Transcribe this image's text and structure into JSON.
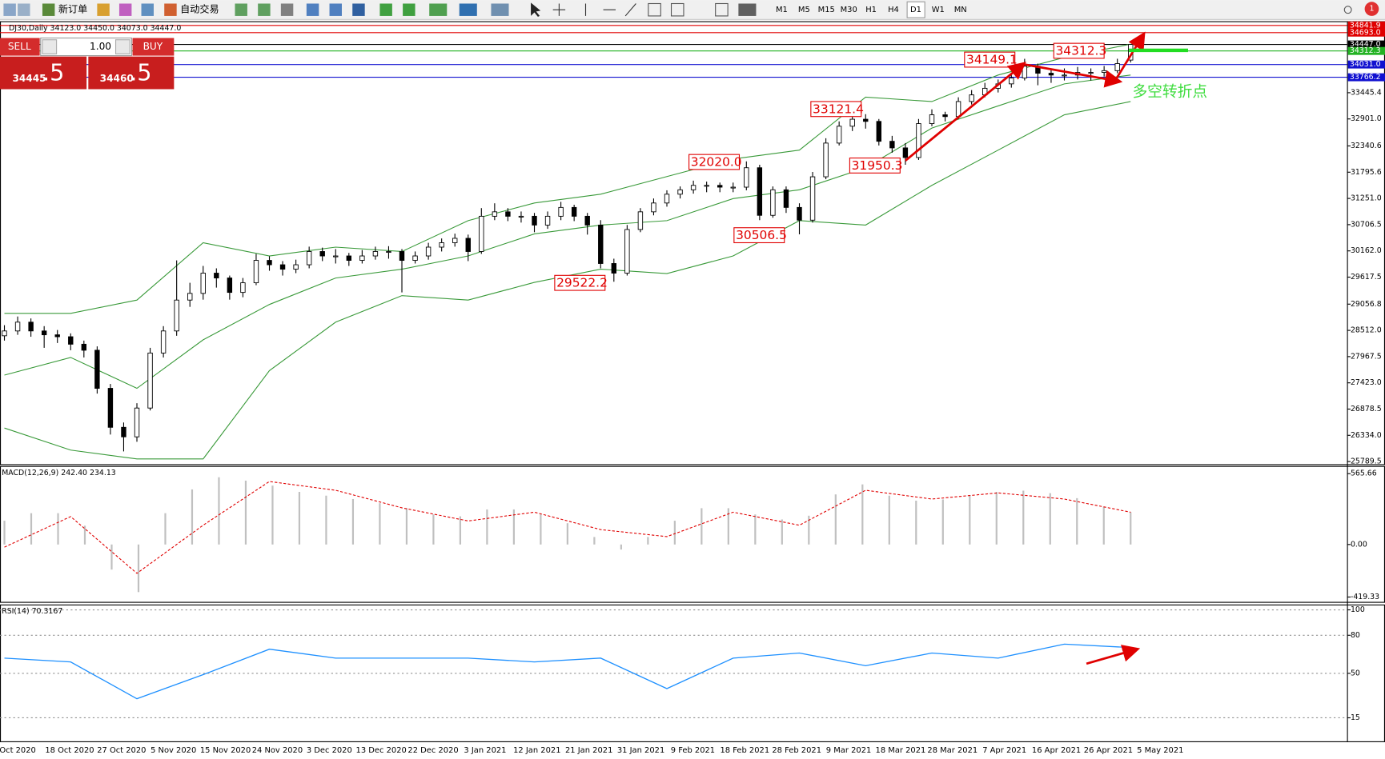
{
  "ui": {
    "toolbar": {
      "new_order": "新订单",
      "auto_trading": "自动交易",
      "timeframes": [
        "M1",
        "M5",
        "M15",
        "M30",
        "H1",
        "H4",
        "D1",
        "W1",
        "MN"
      ],
      "notification": "1"
    },
    "trade": {
      "sell": "SELL",
      "buy": "BUY",
      "lots": "1.00",
      "sell_price": [
        "34445",
        ".5"
      ],
      "buy_price": [
        "34460",
        ".5"
      ]
    },
    "note": "多空转折点"
  },
  "chart_data": [
    {
      "type": "candlestick",
      "title": "DJ30,Daily  34123.0 34450.0 34073.0 34447.0",
      "time_labels": [
        "Oct 2020",
        "18 Oct 2020",
        "27 Oct 2020",
        "5 Nov 2020",
        "15 Nov 2020",
        "24 Nov 2020",
        "3 Dec 2020",
        "13 Dec 2020",
        "22 Dec 2020",
        "3 Jan 2021",
        "12 Jan 2021",
        "21 Jan 2021",
        "31 Jan 2021",
        "9 Feb 2021",
        "18 Feb 2021",
        "28 Feb 2021",
        "9 Mar 2021",
        "18 Mar 2021",
        "28 Mar 2021",
        "7 Apr 2021",
        "16 Apr 2021",
        "26 Apr 2021",
        "5 May 2021"
      ],
      "candles": [
        [
          28400,
          28620,
          28300,
          28500
        ],
        [
          28500,
          28800,
          28420,
          28683
        ],
        [
          28683,
          28760,
          28380,
          28500
        ],
        [
          28500,
          28600,
          28150,
          28420
        ],
        [
          28420,
          28520,
          28250,
          28380
        ],
        [
          28380,
          28450,
          28100,
          28225
        ],
        [
          28225,
          28300,
          27950,
          28100
        ],
        [
          28100,
          28180,
          27200,
          27309
        ],
        [
          27309,
          27400,
          26350,
          26500
        ],
        [
          26500,
          26600,
          26000,
          26302
        ],
        [
          26302,
          27000,
          26200,
          26900
        ],
        [
          26900,
          28150,
          26850,
          28042
        ],
        [
          28042,
          28600,
          27950,
          28500
        ],
        [
          28500,
          29965,
          28400,
          29141
        ],
        [
          29141,
          29500,
          29000,
          29280
        ],
        [
          29280,
          29850,
          29150,
          29700
        ],
        [
          29700,
          29800,
          29400,
          29600
        ],
        [
          29600,
          29650,
          29150,
          29300
        ],
        [
          29300,
          29600,
          29200,
          29500
        ],
        [
          29500,
          30100,
          29450,
          29965
        ],
        [
          29965,
          30050,
          29750,
          29874
        ],
        [
          29874,
          29950,
          29650,
          29782
        ],
        [
          29782,
          29980,
          29700,
          29874
        ],
        [
          29874,
          30250,
          29800,
          30149
        ],
        [
          30149,
          30230,
          29950,
          30057
        ],
        [
          30057,
          30200,
          29900,
          30057
        ],
        [
          30057,
          30120,
          29850,
          29965
        ],
        [
          29965,
          30180,
          29900,
          30057
        ],
        [
          30057,
          30250,
          29980,
          30149
        ],
        [
          30149,
          30260,
          30000,
          30149
        ],
        [
          30149,
          30200,
          29300,
          29965
        ],
        [
          29965,
          30150,
          29900,
          30057
        ],
        [
          30057,
          30330,
          29980,
          30240
        ],
        [
          30240,
          30420,
          30150,
          30332
        ],
        [
          30332,
          30520,
          30250,
          30423
        ],
        [
          30423,
          30500,
          29950,
          30149
        ],
        [
          30149,
          31050,
          30100,
          30881
        ],
        [
          30881,
          31150,
          30800,
          30973
        ],
        [
          30973,
          31050,
          30780,
          30881
        ],
        [
          30881,
          30980,
          30750,
          30881
        ],
        [
          30881,
          30950,
          30550,
          30698
        ],
        [
          30698,
          30980,
          30620,
          30881
        ],
        [
          30881,
          31180,
          30800,
          31064
        ],
        [
          31064,
          31120,
          30780,
          30881
        ],
        [
          30881,
          30950,
          30500,
          30698
        ],
        [
          30698,
          30800,
          29800,
          29900
        ],
        [
          29900,
          30000,
          29522,
          29700
        ],
        [
          29700,
          30700,
          29650,
          30606
        ],
        [
          30606,
          31050,
          30550,
          30973
        ],
        [
          30973,
          31250,
          30900,
          31156
        ],
        [
          31156,
          31420,
          31080,
          31339
        ],
        [
          31339,
          31500,
          31250,
          31430
        ],
        [
          31430,
          31620,
          31350,
          31522
        ],
        [
          31522,
          31600,
          31380,
          31522
        ],
        [
          31522,
          31580,
          31380,
          31485
        ],
        [
          31485,
          31580,
          31380,
          31485
        ],
        [
          31485,
          32020,
          31420,
          31888
        ],
        [
          31888,
          31950,
          30800,
          30900
        ],
        [
          30900,
          31500,
          30850,
          31430
        ],
        [
          31430,
          31500,
          30950,
          31064
        ],
        [
          31064,
          31150,
          30506,
          30800
        ],
        [
          30800,
          31800,
          30750,
          31700
        ],
        [
          31700,
          32500,
          31650,
          32400
        ],
        [
          32400,
          32850,
          32350,
          32750
        ],
        [
          32750,
          33121,
          32650,
          32895
        ],
        [
          32895,
          33000,
          32700,
          32850
        ],
        [
          32850,
          32900,
          32350,
          32437
        ],
        [
          32437,
          32550,
          32200,
          32300
        ],
        [
          32300,
          32400,
          31950,
          32100
        ],
        [
          32100,
          32900,
          32050,
          32804
        ],
        [
          32804,
          33100,
          32750,
          32987
        ],
        [
          32987,
          33050,
          32850,
          32950
        ],
        [
          32950,
          33350,
          32900,
          33262
        ],
        [
          33262,
          33500,
          33200,
          33400
        ],
        [
          33400,
          33650,
          33350,
          33537
        ],
        [
          33537,
          33720,
          33450,
          33629
        ],
        [
          33629,
          33850,
          33550,
          33750
        ],
        [
          33750,
          34149,
          33700,
          33995
        ],
        [
          33995,
          34050,
          33600,
          33850
        ],
        [
          33850,
          33950,
          33650,
          33812
        ],
        [
          33812,
          33950,
          33700,
          33812
        ],
        [
          33812,
          33980,
          33720,
          33867
        ],
        [
          33867,
          33950,
          33700,
          33867
        ],
        [
          33867,
          34000,
          33780,
          33903
        ],
        [
          33903,
          34150,
          33850,
          34050
        ],
        [
          34123,
          34450,
          34073,
          34447
        ]
      ],
      "bull_color": "#ffffff",
      "bear_color": "#000000",
      "bands": [
        {
          "color": "#3a9a3a",
          "values": [
            28866,
            28866,
            29141,
            30332,
            30057,
            30240,
            30149,
            30790,
            31156,
            31339,
            31705,
            32070,
            32254,
            33354,
            33262,
            33812,
            34178,
            34453
          ]
        },
        {
          "color": "#3a9a3a",
          "values": [
            27584,
            27950,
            27309,
            28316,
            29050,
            29599,
            29782,
            30057,
            30515,
            30698,
            30790,
            31247,
            31430,
            31888,
            32712,
            33171,
            33629,
            33812
          ]
        },
        {
          "color": "#3a9a3a",
          "values": [
            26485,
            26027,
            25844,
            25844,
            27676,
            28683,
            29233,
            29141,
            29508,
            29783,
            29691,
            30057,
            30790,
            30698,
            31522,
            32254,
            32987,
            33262
          ]
        }
      ],
      "levels": [
        {
          "value": 34841.9,
          "label": "34841.9",
          "color": "#e00000"
        },
        {
          "value": 34693.0,
          "label": "34693.0",
          "color": "#e00000"
        },
        {
          "value": 34447.0,
          "label": "34447.0",
          "color": "#000000"
        },
        {
          "value": 34312.3,
          "label": "34312.3",
          "color": "#22b222"
        },
        {
          "value": 34031.0,
          "label": "34031.0",
          "color": "#1010d0"
        },
        {
          "value": 33766.2,
          "label": "33766.2",
          "color": "#1010d0"
        }
      ],
      "annotations": [
        "34149.1",
        "34312.3",
        "33121.4",
        "32020.0",
        "31950.3",
        "30506.5",
        "29522.2"
      ],
      "ylim": [
        25734,
        34929
      ],
      "yticks": [
        {
          "value": 33445.4,
          "label": "33445.4"
        },
        {
          "value": 32901.0,
          "label": "32901.0"
        },
        {
          "value": 32340.6,
          "label": "32340.6"
        },
        {
          "value": 31795.6,
          "label": "31795.6"
        },
        {
          "value": 31251.0,
          "label": "31251.0"
        },
        {
          "value": 30706.5,
          "label": "30706.5"
        },
        {
          "value": 30162.0,
          "label": "30162.0"
        },
        {
          "value": 29617.5,
          "label": "29617.5"
        },
        {
          "value": 29056.8,
          "label": "29056.8"
        },
        {
          "value": 28512.0,
          "label": "28512.0"
        },
        {
          "value": 27967.5,
          "label": "27967.5"
        },
        {
          "value": 27423.0,
          "label": "27423.0"
        },
        {
          "value": 26878.5,
          "label": "26878.5"
        },
        {
          "value": 26334.0,
          "label": "26334.0"
        },
        {
          "value": 25789.5,
          "label": "25789.5"
        }
      ],
      "grid": false
    },
    {
      "type": "macd",
      "title": "MACD(12,26,9) 242.40 234.13",
      "histogram": {
        "color": "#c0c0c0",
        "values": [
          190,
          250,
          250,
          150,
          -200,
          -380,
          250,
          440,
          537,
          510,
          470,
          420,
          390,
          363,
          330,
          290,
          240,
          225,
          280,
          280,
          240,
          170,
          60,
          -40,
          60,
          190,
          290,
          290,
          240,
          200,
          230,
          400,
          480,
          390,
          350,
          360,
          395,
          420,
          430,
          410,
          370,
          300,
          258
        ]
      },
      "signal": {
        "color": "#e00000",
        "values": [
          -21,
          223,
          -230,
          154,
          503,
          433,
          293,
          188,
          258,
          119,
          63,
          258,
          154,
          433,
          363,
          412,
          363,
          258
        ]
      },
      "ylim": [
        -458,
        627
      ],
      "yticks": [
        565.66,
        {
          "value": 0,
          "label": "0.00"
        },
        -419.33
      ],
      "grid": false
    },
    {
      "type": "line",
      "title": "RSI(14) 70.3167",
      "series": [
        {
          "color": "#1e90ff",
          "values": [
            62,
            59,
            30,
            49,
            69,
            62,
            62,
            62,
            59,
            62,
            38,
            62,
            66,
            56,
            66,
            62,
            73,
            70.3167
          ]
        }
      ],
      "ylim": [
        -3.5,
        104.2
      ],
      "yticks": [
        100,
        80,
        50,
        15
      ],
      "grid": true
    }
  ]
}
